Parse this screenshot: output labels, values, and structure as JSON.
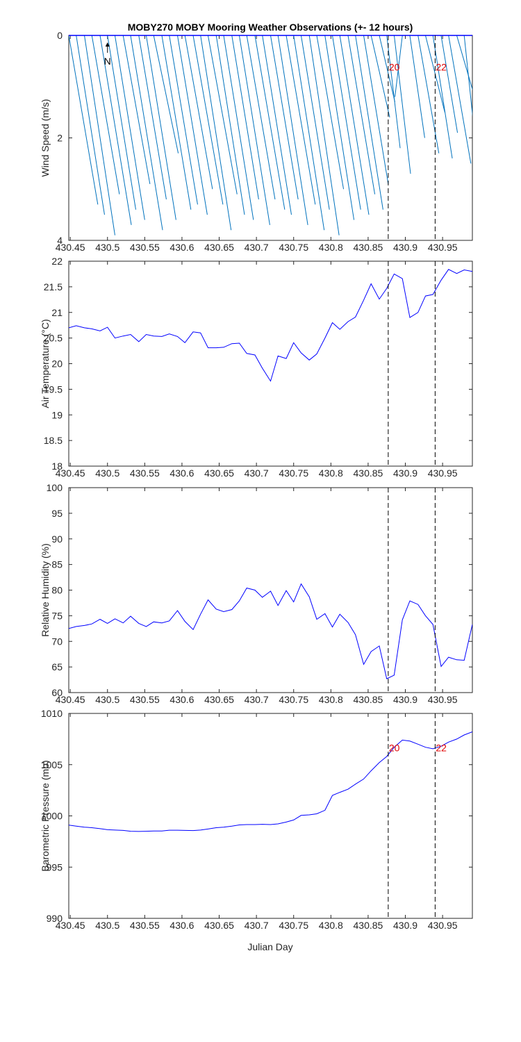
{
  "title": "MOBY270 MOBY Mooring Weather Observations (+- 12 hours)",
  "colors": {
    "line": "#0000ff",
    "wind": "#0072bd",
    "marker_text": "#e00000",
    "axes": "#262626"
  },
  "x_axis": {
    "xlim": [
      430.448,
      430.99
    ],
    "ticks": [
      430.45,
      430.5,
      430.55,
      430.6,
      430.65,
      430.7,
      430.75,
      430.8,
      430.85,
      430.9,
      430.95
    ],
    "tick_labels": [
      "430.45",
      "430.5",
      "430.55",
      "430.6",
      "430.65",
      "430.7",
      "430.75",
      "430.8",
      "430.85",
      "430.9",
      "430.95"
    ],
    "label": "Julian Day"
  },
  "markers": [
    {
      "x": 430.877,
      "label": "20"
    },
    {
      "x": 430.94,
      "label": "22"
    }
  ],
  "chart_data": [
    {
      "type": "quiver",
      "ylabel": "Wind Speed (m/s)",
      "ylim": [
        0,
        4
      ],
      "y_reversed": true,
      "yticks": [
        0,
        2,
        4
      ],
      "ytick_labels": [
        "0",
        "2",
        "4"
      ],
      "north_label": "N",
      "show_markers": true,
      "show_marker_labels": true,
      "marker_label_y": 0.6,
      "vectors": [
        {
          "x": 430.448,
          "dx": 0.039,
          "len": 3.3
        },
        {
          "x": 430.458,
          "dx": 0.038,
          "len": 3.5
        },
        {
          "x": 430.469,
          "dx": 0.041,
          "len": 3.9
        },
        {
          "x": 430.479,
          "dx": 0.037,
          "len": 3.1
        },
        {
          "x": 430.49,
          "dx": 0.042,
          "len": 3.7
        },
        {
          "x": 430.5,
          "dx": 0.038,
          "len": 3.4
        },
        {
          "x": 430.51,
          "dx": 0.04,
          "len": 3.6
        },
        {
          "x": 430.521,
          "dx": 0.036,
          "len": 2.9
        },
        {
          "x": 430.531,
          "dx": 0.043,
          "len": 3.8
        },
        {
          "x": 430.542,
          "dx": 0.037,
          "len": 3.2
        },
        {
          "x": 430.552,
          "dx": 0.04,
          "len": 3.6
        },
        {
          "x": 430.562,
          "dx": 0.033,
          "len": 2.3
        },
        {
          "x": 430.573,
          "dx": 0.039,
          "len": 3.4
        },
        {
          "x": 430.583,
          "dx": 0.038,
          "len": 3.3
        },
        {
          "x": 430.594,
          "dx": 0.04,
          "len": 3.5
        },
        {
          "x": 430.604,
          "dx": 0.037,
          "len": 3.0
        },
        {
          "x": 430.615,
          "dx": 0.04,
          "len": 3.3
        },
        {
          "x": 430.625,
          "dx": 0.041,
          "len": 3.8
        },
        {
          "x": 430.635,
          "dx": 0.039,
          "len": 3.1
        },
        {
          "x": 430.646,
          "dx": 0.038,
          "len": 3.5
        },
        {
          "x": 430.656,
          "dx": 0.04,
          "len": 3.6
        },
        {
          "x": 430.667,
          "dx": 0.036,
          "len": 3.2
        },
        {
          "x": 430.677,
          "dx": 0.041,
          "len": 3.7
        },
        {
          "x": 430.687,
          "dx": 0.038,
          "len": 3.2
        },
        {
          "x": 430.698,
          "dx": 0.04,
          "len": 3.4
        },
        {
          "x": 430.708,
          "dx": 0.039,
          "len": 3.5
        },
        {
          "x": 430.719,
          "dx": 0.037,
          "len": 3.2
        },
        {
          "x": 430.729,
          "dx": 0.04,
          "len": 3.7
        },
        {
          "x": 430.74,
          "dx": 0.039,
          "len": 3.3
        },
        {
          "x": 430.75,
          "dx": 0.041,
          "len": 3.8
        },
        {
          "x": 430.76,
          "dx": 0.038,
          "len": 3.4
        },
        {
          "x": 430.771,
          "dx": 0.04,
          "len": 3.9
        },
        {
          "x": 430.781,
          "dx": 0.036,
          "len": 3.0
        },
        {
          "x": 430.792,
          "dx": 0.039,
          "len": 3.6
        },
        {
          "x": 430.802,
          "dx": 0.038,
          "len": 3.4
        },
        {
          "x": 430.812,
          "dx": 0.039,
          "len": 3.5
        },
        {
          "x": 430.823,
          "dx": 0.036,
          "len": 3.1
        },
        {
          "x": 430.833,
          "dx": 0.037,
          "len": 3.4
        },
        {
          "x": 430.844,
          "dx": 0.033,
          "len": 2.9
        },
        {
          "x": 430.854,
          "dx": 0.025,
          "len": 1.6
        },
        {
          "x": 430.865,
          "dx": 0.021,
          "len": 1.3
        },
        {
          "x": 430.875,
          "dx": 0.018,
          "len": 2.2
        },
        {
          "x": 430.885,
          "dx": 0.022,
          "len": 2.7
        },
        {
          "x": 430.896,
          "dx": -0.01,
          "len": 1.2
        },
        {
          "x": 430.906,
          "dx": 0.02,
          "len": 2.0
        },
        {
          "x": 430.917,
          "dx": 0.028,
          "len": 2.3
        },
        {
          "x": 430.927,
          "dx": 0.026,
          "len": 1.5
        },
        {
          "x": 430.937,
          "dx": 0.026,
          "len": 2.4
        },
        {
          "x": 430.948,
          "dx": 0.022,
          "len": 1.9
        },
        {
          "x": 430.958,
          "dx": 0.03,
          "len": 2.5
        },
        {
          "x": 430.969,
          "dx": 0.024,
          "len": 1.2
        },
        {
          "x": 430.979,
          "dx": 0.013,
          "len": 1.8
        }
      ]
    },
    {
      "type": "line",
      "ylabel": "Air Temperature (°C)",
      "ylim": [
        18,
        22
      ],
      "yticks": [
        18,
        18.5,
        19,
        19.5,
        20,
        20.5,
        21,
        21.5,
        22
      ],
      "ytick_labels": [
        "18",
        "18.5",
        "19",
        "19.5",
        "20",
        "20.5",
        "21",
        "21.5",
        "22"
      ],
      "show_markers": true,
      "show_marker_labels": false,
      "x": [
        430.448,
        430.458,
        430.469,
        430.479,
        430.49,
        430.5,
        430.51,
        430.521,
        430.531,
        430.542,
        430.552,
        430.562,
        430.573,
        430.583,
        430.594,
        430.604,
        430.615,
        430.625,
        430.635,
        430.646,
        430.656,
        430.667,
        430.677,
        430.687,
        430.698,
        430.708,
        430.719,
        430.729,
        430.74,
        430.75,
        430.76,
        430.771,
        430.781,
        430.792,
        430.802,
        430.812,
        430.823,
        430.833,
        430.844,
        430.854,
        430.865,
        430.875,
        430.885,
        430.896,
        430.906,
        430.917,
        430.927,
        430.937,
        430.948,
        430.958,
        430.969,
        430.979,
        430.99
      ],
      "y": [
        20.7,
        20.74,
        20.7,
        20.68,
        20.64,
        20.71,
        20.5,
        20.54,
        20.57,
        20.43,
        20.57,
        20.54,
        20.53,
        20.58,
        20.53,
        20.41,
        20.62,
        20.6,
        20.31,
        20.31,
        20.32,
        20.39,
        20.4,
        20.2,
        20.17,
        19.91,
        19.66,
        20.15,
        20.1,
        20.41,
        20.21,
        20.07,
        20.19,
        20.5,
        20.8,
        20.67,
        20.82,
        20.91,
        21.24,
        21.56,
        21.26,
        21.47,
        21.75,
        21.66,
        20.9,
        21.0,
        21.32,
        21.35,
        21.63,
        21.84,
        21.76,
        21.83,
        21.8
      ]
    },
    {
      "type": "line",
      "ylabel": "Relative Humidity (%)",
      "ylim": [
        60,
        100
      ],
      "yticks": [
        60,
        65,
        70,
        75,
        80,
        85,
        90,
        95,
        100
      ],
      "ytick_labels": [
        "60",
        "65",
        "70",
        "75",
        "80",
        "85",
        "90",
        "95",
        "100"
      ],
      "show_markers": true,
      "show_marker_labels": false,
      "x": [
        430.448,
        430.458,
        430.469,
        430.479,
        430.49,
        430.5,
        430.51,
        430.521,
        430.531,
        430.542,
        430.552,
        430.562,
        430.573,
        430.583,
        430.594,
        430.604,
        430.615,
        430.625,
        430.635,
        430.646,
        430.656,
        430.667,
        430.677,
        430.687,
        430.698,
        430.708,
        430.719,
        430.729,
        430.74,
        430.75,
        430.76,
        430.771,
        430.781,
        430.792,
        430.802,
        430.812,
        430.823,
        430.833,
        430.844,
        430.854,
        430.865,
        430.875,
        430.885,
        430.896,
        430.906,
        430.917,
        430.927,
        430.937,
        430.948,
        430.958,
        430.969,
        430.979,
        430.99
      ],
      "y": [
        72.5,
        72.9,
        73.1,
        73.4,
        74.3,
        73.5,
        74.4,
        73.6,
        74.9,
        73.5,
        72.9,
        73.8,
        73.6,
        74.0,
        76.0,
        73.9,
        72.3,
        75.3,
        78.1,
        76.3,
        75.8,
        76.2,
        77.9,
        80.4,
        80.0,
        78.6,
        79.8,
        77.0,
        79.9,
        77.7,
        81.2,
        78.7,
        74.3,
        75.4,
        72.8,
        75.3,
        73.7,
        71.3,
        65.5,
        68.0,
        69.1,
        62.7,
        63.4,
        74.2,
        77.9,
        77.2,
        75.0,
        73.3,
        65.1,
        66.9,
        66.4,
        66.3,
        73.3
      ]
    },
    {
      "type": "line",
      "ylabel": "Barometric Pressure (mb)",
      "ylim": [
        990,
        1010
      ],
      "yticks": [
        990,
        995,
        1000,
        1005,
        1010
      ],
      "ytick_labels": [
        "990",
        "995",
        "1000",
        "1005",
        "1010"
      ],
      "show_markers": true,
      "show_marker_labels": true,
      "marker_label_y": 1006.7,
      "x": [
        430.448,
        430.458,
        430.469,
        430.479,
        430.49,
        430.5,
        430.51,
        430.521,
        430.531,
        430.542,
        430.552,
        430.562,
        430.573,
        430.583,
        430.594,
        430.604,
        430.615,
        430.625,
        430.635,
        430.646,
        430.656,
        430.667,
        430.677,
        430.687,
        430.698,
        430.708,
        430.719,
        430.729,
        430.74,
        430.75,
        430.76,
        430.771,
        430.781,
        430.792,
        430.802,
        430.812,
        430.823,
        430.833,
        430.844,
        430.854,
        430.865,
        430.875,
        430.885,
        430.896,
        430.906,
        430.917,
        430.927,
        430.937,
        430.948,
        430.958,
        430.969,
        430.979,
        430.99
      ],
      "y": [
        999.1,
        999.0,
        998.9,
        998.85,
        998.75,
        998.65,
        998.62,
        998.58,
        998.5,
        998.48,
        998.5,
        998.52,
        998.53,
        998.6,
        998.6,
        998.58,
        998.57,
        998.62,
        998.72,
        998.85,
        998.9,
        999.0,
        999.12,
        999.15,
        999.15,
        999.18,
        999.15,
        999.22,
        999.4,
        999.6,
        1000.05,
        1000.1,
        1000.2,
        1000.55,
        1002.0,
        1002.3,
        1002.6,
        1003.1,
        1003.6,
        1004.4,
        1005.2,
        1005.8,
        1006.7,
        1007.4,
        1007.3,
        1007.0,
        1006.7,
        1006.55,
        1006.8,
        1007.2,
        1007.5,
        1007.9,
        1008.2
      ]
    }
  ]
}
